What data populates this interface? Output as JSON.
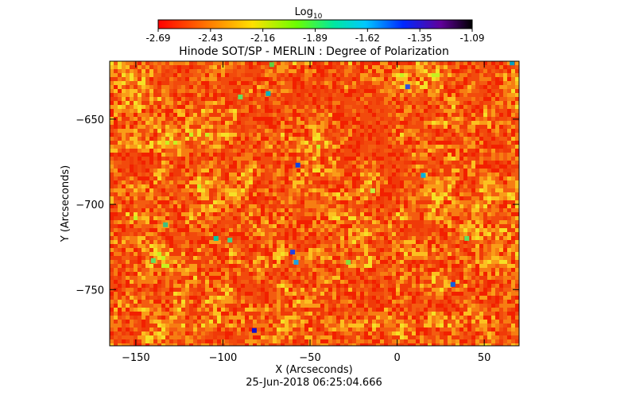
{
  "chart_data": {
    "type": "heatmap",
    "title": "Hinode SOT/SP - MERLIN : Degree of Polarization",
    "colorbar": {
      "label_base": "Log",
      "label_subscript": "10",
      "tick_labels": [
        "-2.69",
        "-2.43",
        "-2.16",
        "-1.89",
        "-1.62",
        "-1.35",
        "-1.09"
      ],
      "range": [
        -2.69,
        -1.09
      ],
      "colormap": "rainbow"
    },
    "xlabel": "X (Arcseconds)",
    "ylabel": "Y (Arcseconds)",
    "x_ticks": [
      -150,
      -100,
      -50,
      0,
      50
    ],
    "y_ticks": [
      -650,
      -700,
      -750
    ],
    "xlim": [
      -165,
      70
    ],
    "ylim": [
      -783,
      -616
    ],
    "timestamp": "25-Jun-2018 06:25:04.666",
    "data_description": "dense granular mottled field of degree of polarization; mostly -2.69 to -2.3 (red-orange) with scattered yellow/green patches and small blue spots up to about -1.6",
    "grid": false
  }
}
